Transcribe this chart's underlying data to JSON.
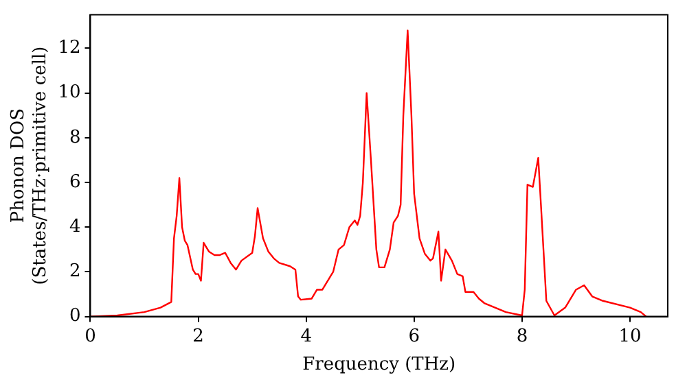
{
  "chart_data": {
    "type": "line",
    "xlabel": "Frequency (THz)",
    "ylabel": "Phonon DOS\n(States/THz·primitive cell)",
    "xlim": [
      0,
      10.7
    ],
    "ylim": [
      0,
      13.5
    ],
    "xticks": [
      0,
      2,
      4,
      6,
      8,
      10
    ],
    "yticks": [
      0,
      2,
      4,
      6,
      8,
      10,
      12
    ],
    "grid": false,
    "legend": false,
    "marker": "none",
    "line_style": "solid",
    "series": [
      {
        "color": "#ff0000",
        "x": [
          0,
          0.5,
          1.0,
          1.3,
          1.5,
          1.55,
          1.6,
          1.65,
          1.7,
          1.75,
          1.8,
          1.9,
          1.95,
          2.0,
          2.05,
          2.1,
          2.2,
          2.3,
          2.4,
          2.5,
          2.6,
          2.7,
          2.8,
          3.0,
          3.05,
          3.1,
          3.2,
          3.3,
          3.4,
          3.5,
          3.7,
          3.8,
          3.85,
          3.9,
          4.1,
          4.2,
          4.3,
          4.5,
          4.6,
          4.7,
          4.8,
          4.9,
          4.95,
          5.0,
          5.05,
          5.12,
          5.2,
          5.3,
          5.35,
          5.45,
          5.55,
          5.62,
          5.7,
          5.75,
          5.8,
          5.88,
          5.95,
          6.0,
          6.1,
          6.2,
          6.3,
          6.35,
          6.45,
          6.5,
          6.58,
          6.7,
          6.8,
          6.9,
          6.95,
          7.1,
          7.2,
          7.3,
          7.5,
          7.7,
          8.0,
          8.05,
          8.1,
          8.2,
          8.3,
          8.35,
          8.45,
          8.6,
          8.8,
          9.0,
          9.15,
          9.3,
          9.5,
          10.0,
          10.2,
          10.3
        ],
        "values": [
          0,
          0.05,
          0.2,
          0.4,
          0.65,
          3.5,
          4.5,
          6.2,
          4,
          3.4,
          3.2,
          2.1,
          1.9,
          1.9,
          1.6,
          3.3,
          2.9,
          2.75,
          2.75,
          2.85,
          2.4,
          2.1,
          2.5,
          2.85,
          3.6,
          4.85,
          3.5,
          2.9,
          2.6,
          2.4,
          2.25,
          2.1,
          0.9,
          0.75,
          0.8,
          1.2,
          1.2,
          2.0,
          3.0,
          3.2,
          4.0,
          4.3,
          4.1,
          4.5,
          6.0,
          10.0,
          7.0,
          3.0,
          2.2,
          2.2,
          3.0,
          4.2,
          4.5,
          5.0,
          9.0,
          12.8,
          9,
          5.5,
          3.5,
          2.8,
          2.5,
          2.6,
          3.8,
          1.6,
          3.0,
          2.5,
          1.9,
          1.8,
          1.1,
          1.1,
          0.8,
          0.6,
          0.4,
          0.2,
          0.05,
          1.2,
          5.9,
          5.8,
          7.1,
          5,
          0.7,
          0.05,
          0.4,
          1.2,
          1.4,
          0.9,
          0.7,
          0.4,
          0.2,
          0
        ]
      }
    ]
  }
}
